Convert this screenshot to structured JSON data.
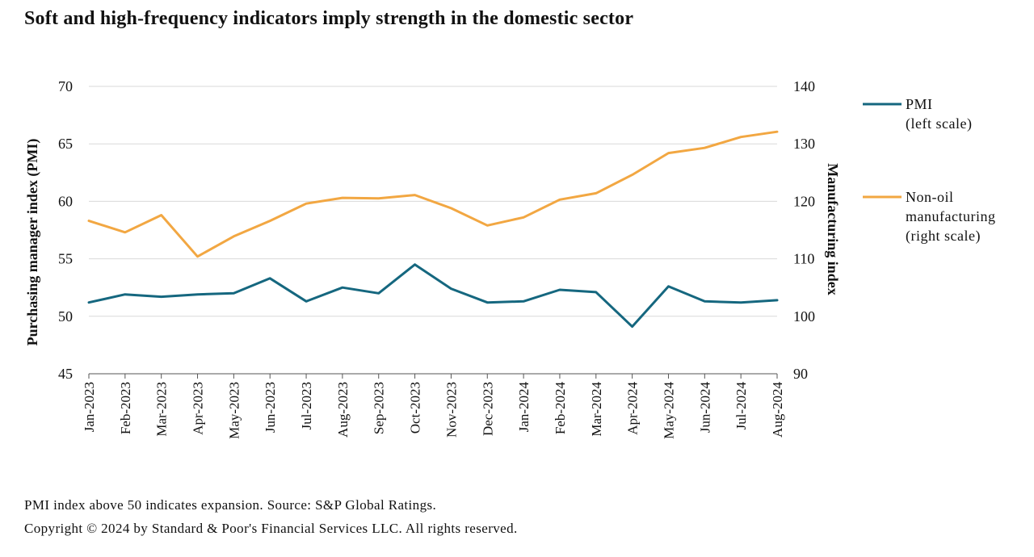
{
  "title": "Soft and high-frequency indicators imply strength in the domestic sector",
  "footnote": "PMI index above 50 indicates expansion. Source: S&P Global Ratings.",
  "copyright": "Copyright © 2024 by Standard & Poor's Financial Services LLC. All rights reserved.",
  "colors": {
    "pmi": "#15677f",
    "manufacturing": "#f2a742",
    "grid": "#d9d9d9",
    "axis": "#555555"
  },
  "chart_data": {
    "type": "line",
    "categories": [
      "Jan-2023",
      "Feb-2023",
      "Mar-2023",
      "Apr-2023",
      "May-2023",
      "Jun-2023",
      "Jul-2023",
      "Aug-2023",
      "Sep-2023",
      "Oct-2023",
      "Nov-2023",
      "Dec-2023",
      "Jan-2024",
      "Feb-2024",
      "Mar-2024",
      "Apr-2024",
      "May-2024",
      "Jun-2024",
      "Jul-2024",
      "Aug-2024"
    ],
    "ylabel": "Purchasing manager index (PMI)",
    "y2label": "Manufacturing index",
    "ylim": [
      45,
      70
    ],
    "y2lim": [
      90,
      140
    ],
    "yticks": [
      45,
      50,
      55,
      60,
      65,
      70
    ],
    "y2ticks": [
      90,
      100,
      110,
      120,
      130,
      140
    ],
    "grid": true,
    "legend_position": "right",
    "series": [
      {
        "name": "PMI",
        "legend_lines": [
          "PMI",
          "(left scale)"
        ],
        "axis": "left",
        "values": [
          51.2,
          51.9,
          51.7,
          51.9,
          52.0,
          53.3,
          51.3,
          52.5,
          52.0,
          54.5,
          52.4,
          51.2,
          51.3,
          52.3,
          52.1,
          49.1,
          52.6,
          51.3,
          51.2,
          51.4
        ]
      },
      {
        "name": "Non-oil manufacturing (right scale)",
        "legend_lines": [
          "Non-oil",
          "manufacturing",
          "(right scale)"
        ],
        "axis": "right",
        "values": [
          116.6,
          114.6,
          117.6,
          110.4,
          113.9,
          116.6,
          119.6,
          120.6,
          120.5,
          121.1,
          118.8,
          115.8,
          117.2,
          120.3,
          121.4,
          124.6,
          128.4,
          129.3,
          131.2,
          132.1
        ]
      }
    ]
  }
}
